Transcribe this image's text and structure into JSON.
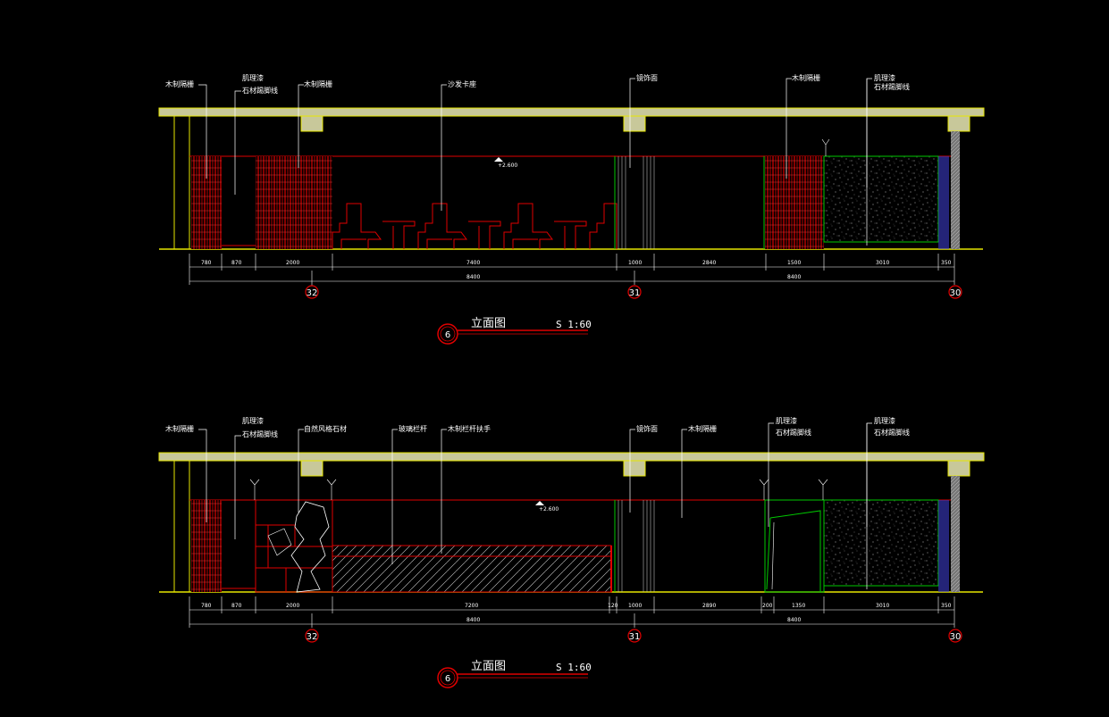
{
  "colors": {
    "background": "#000000",
    "ceiling": "#c8c89a",
    "wall_outline": "#e6e600",
    "red": "#e00000",
    "green": "#00c800",
    "white": "#ffffff",
    "blue": "#3c3cc8"
  },
  "elevation_top": {
    "labels": {
      "wood_screen_1": "木制隔栅",
      "paint_1": "肌理漆",
      "stone_skirting_1": "石材踢脚线",
      "wood_screen_2": "木制隔栅",
      "sofa_booth": "沙发卡座",
      "mirror_surface": "镜饰面",
      "wood_screen_3": "木制隔栅",
      "paint_2": "肌理漆",
      "stone_skirting_2": "石材踢脚线"
    },
    "elevation_mark": "+2.600",
    "dims_row1": [
      "780",
      "870",
      "2000",
      "7400",
      "1000",
      "2840",
      "1500",
      "3010",
      "350"
    ],
    "dims_row2": [
      "8400",
      "8400"
    ],
    "axes": [
      "32",
      "31",
      "30"
    ],
    "title": {
      "number": "6",
      "name": "立面图",
      "scale": "S 1:60"
    }
  },
  "elevation_bottom": {
    "labels": {
      "wood_screen_1": "木制隔栅",
      "paint_1": "肌理漆",
      "stone_skirting_1": "石材踢脚线",
      "natural_stone": "自然风格石材",
      "glass_railing": "玻璃栏杆",
      "wood_handrail": "木制栏杆扶手",
      "mirror_surface": "镜饰面",
      "wood_screen_2": "木制隔栅",
      "paint_2": "肌理漆",
      "stone_skirting_2": "石材踢脚线",
      "paint_3": "肌理漆",
      "stone_skirting_3": "石材踢脚线"
    },
    "elevation_mark": "+2.600",
    "dims_row1": [
      "780",
      "870",
      "2000",
      "7200",
      "120",
      "1000",
      "2890",
      "200",
      "1350",
      "3010",
      "350"
    ],
    "dims_row2": [
      "8400",
      "8400"
    ],
    "axes": [
      "32",
      "31",
      "30"
    ],
    "title": {
      "number": "6",
      "name": "立面图",
      "scale": "S 1:60"
    }
  }
}
